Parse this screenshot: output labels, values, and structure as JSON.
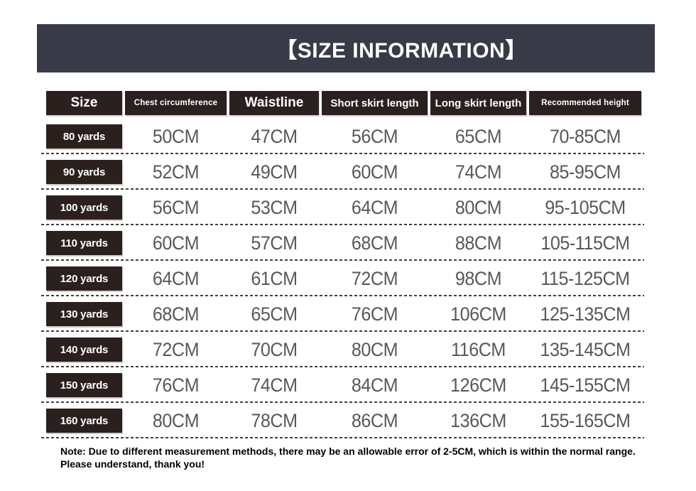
{
  "banner": {
    "title": "【SIZE INFORMATION】"
  },
  "table": {
    "headers": [
      "Size",
      "Chest circumference",
      "Waistline",
      "Short skirt length",
      "Long skirt length",
      "Recommended height"
    ],
    "rows": [
      {
        "size": "80 yards",
        "chest": "50CM",
        "waistline": "47CM",
        "short_skirt": "56CM",
        "long_skirt": "65CM",
        "recommended_height": "70-85CM"
      },
      {
        "size": "90 yards",
        "chest": "52CM",
        "waistline": "49CM",
        "short_skirt": "60CM",
        "long_skirt": "74CM",
        "recommended_height": "85-95CM"
      },
      {
        "size": "100 yards",
        "chest": "56CM",
        "waistline": "53CM",
        "short_skirt": "64CM",
        "long_skirt": "80CM",
        "recommended_height": "95-105CM"
      },
      {
        "size": "110 yards",
        "chest": "60CM",
        "waistline": "57CM",
        "short_skirt": "68CM",
        "long_skirt": "88CM",
        "recommended_height": "105-115CM"
      },
      {
        "size": "120 yards",
        "chest": "64CM",
        "waistline": "61CM",
        "short_skirt": "72CM",
        "long_skirt": "98CM",
        "recommended_height": "115-125CM"
      },
      {
        "size": "130 yards",
        "chest": "68CM",
        "waistline": "65CM",
        "short_skirt": "76CM",
        "long_skirt": "106CM",
        "recommended_height": "125-135CM"
      },
      {
        "size": "140 yards",
        "chest": "72CM",
        "waistline": "70CM",
        "short_skirt": "80CM",
        "long_skirt": "116CM",
        "recommended_height": "135-145CM"
      },
      {
        "size": "150 yards",
        "chest": "76CM",
        "waistline": "74CM",
        "short_skirt": "84CM",
        "long_skirt": "126CM",
        "recommended_height": "145-155CM"
      },
      {
        "size": "160 yards",
        "chest": "80CM",
        "waistline": "78CM",
        "short_skirt": "86CM",
        "long_skirt": "136CM",
        "recommended_height": "155-165CM"
      }
    ]
  },
  "note": "Note: Due to different measurement methods, there may be an allowable error of 2-5CM, which is within the normal range. Please understand, thank you!",
  "colors": {
    "banner_bg": "#383b47",
    "header_cell_bg": "#2a211f",
    "badge_bg": "#2a211f",
    "data_text": "#58585a",
    "dash_line": "#3f3f3f"
  }
}
